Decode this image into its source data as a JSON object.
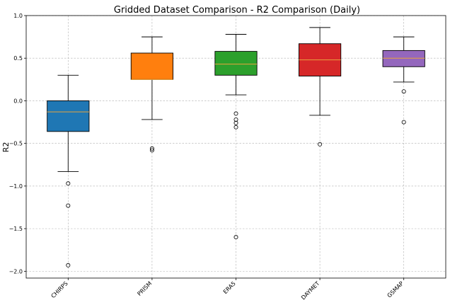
{
  "chart_data": {
    "type": "box",
    "title": "Gridded Dataset Comparison - R2 Comparison (Daily)",
    "xlabel": "",
    "ylabel": "R2",
    "ylim": [
      -2.08,
      1.0
    ],
    "yticks": [
      -2.0,
      -1.5,
      -1.0,
      -0.5,
      0.0,
      0.5,
      1.0
    ],
    "ytick_labels": [
      "−2.0",
      "−1.5",
      "−1.0",
      "−0.5",
      "0.0",
      "0.5",
      "1.0"
    ],
    "grid": true,
    "categories": [
      "CHIRPS",
      "PRISM",
      "ERA5",
      "DAYMET",
      "GSMAP"
    ],
    "series": [
      {
        "category": "CHIRPS",
        "color": "#1f77b4",
        "whisker_low": -0.83,
        "q1": -0.36,
        "median": -0.13,
        "q3": 0.0,
        "whisker_high": 0.3,
        "outliers": [
          -0.97,
          -1.23,
          -1.93
        ]
      },
      {
        "category": "PRISM",
        "color": "#ff7f0e",
        "whisker_low": -0.22,
        "q1": 0.25,
        "median": 0.25,
        "q3": 0.56,
        "whisker_high": 0.75,
        "outliers": [
          -0.56,
          -0.58
        ]
      },
      {
        "category": "ERA5",
        "color": "#2ca02c",
        "whisker_low": 0.07,
        "q1": 0.3,
        "median": 0.43,
        "q3": 0.58,
        "whisker_high": 0.78,
        "outliers": [
          -0.15,
          -0.22,
          -0.26,
          -0.31,
          -1.6
        ]
      },
      {
        "category": "DAYMET",
        "color": "#d62728",
        "whisker_low": -0.17,
        "q1": 0.29,
        "median": 0.48,
        "q3": 0.67,
        "whisker_high": 0.86,
        "outliers": [
          -0.51
        ]
      },
      {
        "category": "GSMAP",
        "color": "#9467bd",
        "whisker_low": 0.22,
        "q1": 0.4,
        "median": 0.5,
        "q3": 0.59,
        "whisker_high": 0.75,
        "outliers": [
          0.11,
          -0.25
        ]
      }
    ],
    "median_color": "#e8a33d"
  }
}
